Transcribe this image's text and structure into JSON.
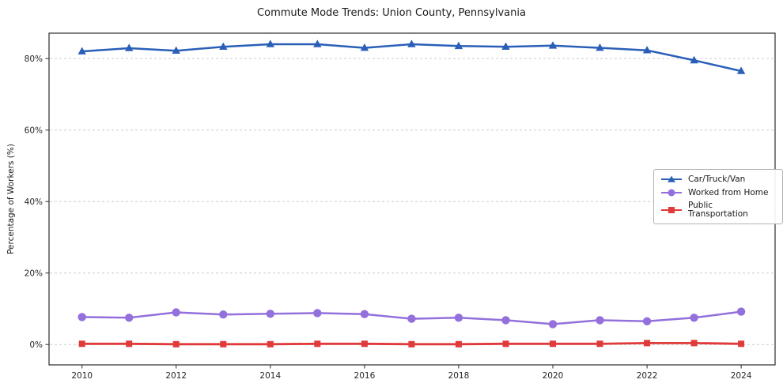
{
  "chart_data": {
    "type": "line",
    "title": "Commute Mode Trends: Union County, Pennsylvania",
    "ylabel": "Percentage of Workers (%)",
    "xlabel": "",
    "x": [
      2010,
      2011,
      2012,
      2013,
      2014,
      2015,
      2016,
      2017,
      2018,
      2019,
      2020,
      2021,
      2022,
      2023,
      2024
    ],
    "xticks": [
      2010,
      2012,
      2014,
      2016,
      2018,
      2020,
      2022,
      2024
    ],
    "yticks": [
      0,
      20,
      40,
      60,
      80
    ],
    "ytick_labels": [
      "0%",
      "20%",
      "40%",
      "60%",
      "80%"
    ],
    "xlim": [
      2009.3,
      2024.72
    ],
    "ylim": [
      -5.7,
      87.1
    ],
    "grid": "horizontal-dashed",
    "legend_position": "center-right",
    "series": [
      {
        "name": "Car/Truck/Van",
        "color": "#2a5fb8",
        "marker": "triangle",
        "values": [
          82.0,
          82.9,
          82.2,
          83.3,
          84.0,
          84.0,
          83.0,
          84.0,
          83.5,
          83.3,
          83.6,
          83.0,
          82.3,
          79.5,
          76.5
        ]
      },
      {
        "name": "Worked from Home",
        "color": "#9370db",
        "marker": "circle",
        "values": [
          7.7,
          7.5,
          9.0,
          8.4,
          8.6,
          8.8,
          8.5,
          7.2,
          7.5,
          6.8,
          5.7,
          6.8,
          6.5,
          7.5,
          9.2
        ]
      },
      {
        "name": "Public Transportation",
        "color": "#e03a3a",
        "marker": "square",
        "values": [
          0.2,
          0.2,
          0.1,
          0.1,
          0.1,
          0.2,
          0.2,
          0.1,
          0.1,
          0.2,
          0.2,
          0.2,
          0.4,
          0.4,
          0.2
        ]
      }
    ]
  }
}
